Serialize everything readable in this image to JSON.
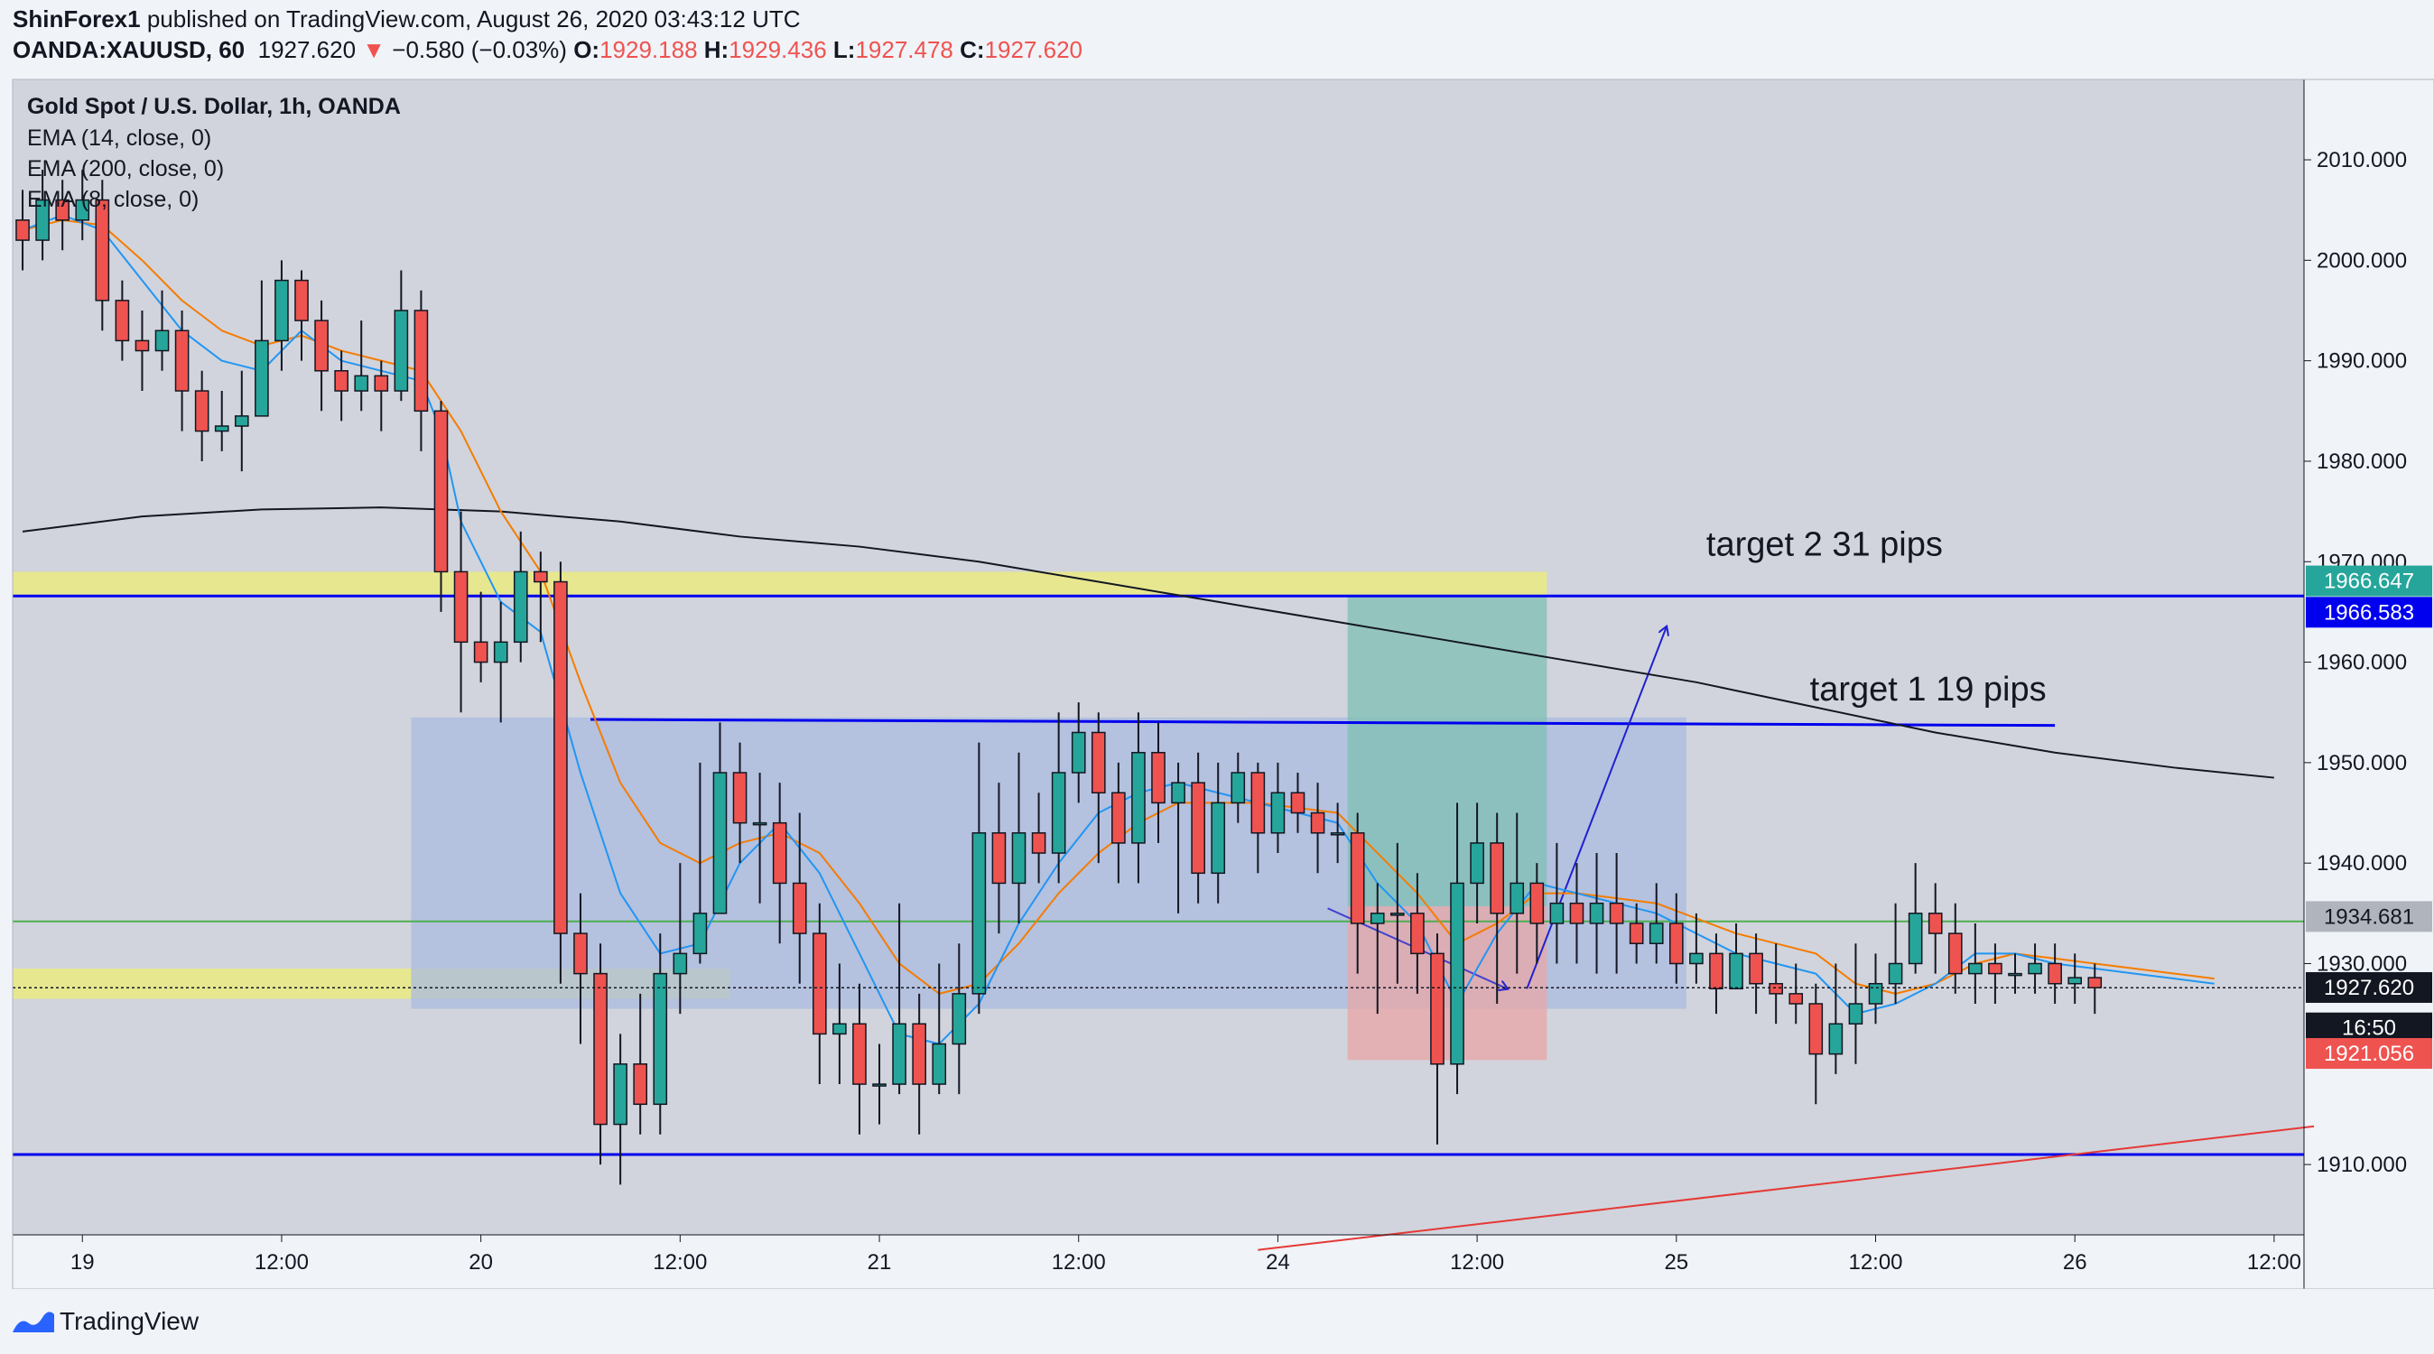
{
  "header": {
    "author": "ShinForex1",
    "published_text": "published on TradingView.com, August 26, 2020 03:43:12 UTC",
    "symbol": "OANDA:XAUUSD, 60",
    "last": "1927.620",
    "change": "−0.580 (−0.03%)",
    "o_label": "O:",
    "o_value": "1929.188",
    "h_label": "H:",
    "h_value": "1929.436",
    "l_label": "L:",
    "l_value": "1927.478",
    "c_label": "C:",
    "c_value": "1927.620"
  },
  "legend": {
    "title": "Gold Spot / U.S. Dollar, 1h, OANDA",
    "ema14": "EMA (14, close, 0)",
    "ema200": "EMA (200, close, 0)",
    "ema8": "EMA (8, close, 0)"
  },
  "footer": {
    "brand": "TradingView"
  },
  "colors": {
    "up": "#26a69a",
    "down": "#ef5350",
    "ema_fast": "#2196f3",
    "ema_mid": "#f57c00",
    "ema_slow": "#131722",
    "level_line": "#0000ee",
    "zone": "#eeee77",
    "box": "#a9bbe0",
    "tp_zone": "#7fbfb4",
    "sl_zone": "#e8a6a6",
    "trend": "#e53935",
    "horizontal_green": "#4caf50"
  },
  "chart_data": {
    "type": "candlestick",
    "symbol": "OANDA:XAUUSD",
    "interval": "1h",
    "y_range": [
      1903,
      2018
    ],
    "x_range": [
      0,
      115
    ],
    "y_ticks": [
      "2010.000",
      "2000.000",
      "1990.000",
      "1980.000",
      "1970.000",
      "1960.000",
      "1950.000",
      "1940.000",
      "1930.000",
      "1910.000"
    ],
    "x_ticks": [
      {
        "label": "19",
        "bar": 3
      },
      {
        "label": "12:00",
        "bar": 13
      },
      {
        "label": "20",
        "bar": 23
      },
      {
        "label": "12:00",
        "bar": 33
      },
      {
        "label": "21",
        "bar": 43
      },
      {
        "label": "12:00",
        "bar": 53
      },
      {
        "label": "24",
        "bar": 63
      },
      {
        "label": "12:00",
        "bar": 73
      },
      {
        "label": "25",
        "bar": 83
      },
      {
        "label": "12:00",
        "bar": 93
      },
      {
        "label": "26",
        "bar": 103
      },
      {
        "label": "12:00",
        "bar": 113
      }
    ],
    "price_labels": [
      {
        "text": "1966.647",
        "price": 1966.647,
        "bg": "#26a69a",
        "fg": "#ffffff"
      },
      {
        "text": "1966.583",
        "price": 1966.583,
        "bg": "#0000ee",
        "fg": "#ffffff"
      },
      {
        "text": "1934.681",
        "price": 1934.681,
        "bg": "#b0b4bc",
        "fg": "#131722"
      },
      {
        "text": "1927.620",
        "price": 1927.62,
        "bg": "#131722",
        "fg": "#ffffff"
      },
      {
        "text": "16:50",
        "price": 1923.6,
        "bg": "#131722",
        "fg": "#ffffff"
      },
      {
        "text": "1921.056",
        "price": 1921.056,
        "bg": "#ef5350",
        "fg": "#ffffff"
      }
    ],
    "annotations": [
      {
        "text": "target 2 31 pips",
        "bar": 84.5,
        "price": 1970.6
      },
      {
        "text": "target 1 19 pips",
        "bar": 89.7,
        "price": 1956.2
      }
    ],
    "candles": [
      [
        2004.0,
        2002.0,
        2007,
        1999
      ],
      [
        2002.0,
        2006.0,
        2009,
        2000
      ],
      [
        2006.0,
        2004.0,
        2008,
        2001
      ],
      [
        2004.0,
        2006.0,
        2009,
        2002
      ],
      [
        2006.0,
        1996.0,
        2008,
        1993
      ],
      [
        1996.0,
        1992.0,
        1998,
        1990
      ],
      [
        1992.0,
        1991.0,
        1995,
        1987
      ],
      [
        1991.0,
        1993.0,
        1997,
        1989
      ],
      [
        1993.0,
        1987.0,
        1995,
        1983
      ],
      [
        1987.0,
        1983.0,
        1989,
        1980
      ],
      [
        1983.0,
        1983.5,
        1987,
        1981
      ],
      [
        1983.5,
        1984.5,
        1989,
        1979
      ],
      [
        1984.5,
        1992.0,
        1998,
        1987
      ],
      [
        1992.0,
        1998.0,
        2000,
        1989
      ],
      [
        1998.0,
        1994.0,
        1999,
        1990
      ],
      [
        1994.0,
        1989.0,
        1996,
        1985
      ],
      [
        1989.0,
        1987.0,
        1991,
        1984
      ],
      [
        1987.0,
        1988.5,
        1994,
        1985
      ],
      [
        1988.5,
        1987.0,
        1990,
        1983
      ],
      [
        1987.0,
        1995.0,
        1999,
        1986
      ],
      [
        1995.0,
        1985.0,
        1997,
        1981
      ],
      [
        1985.0,
        1969.0,
        1986,
        1965
      ],
      [
        1969.0,
        1962.0,
        1975,
        1955
      ],
      [
        1962.0,
        1960.0,
        1967,
        1958
      ],
      [
        1960.0,
        1962.0,
        1966,
        1954
      ],
      [
        1962.0,
        1969.0,
        1973,
        1960
      ],
      [
        1969.0,
        1968.0,
        1971,
        1962
      ],
      [
        1968.0,
        1933.0,
        1970,
        1928
      ],
      [
        1933.0,
        1929.0,
        1937,
        1922
      ],
      [
        1929.0,
        1914.0,
        1932,
        1910
      ],
      [
        1914.0,
        1920.0,
        1923,
        1908
      ],
      [
        1920.0,
        1916.0,
        1927,
        1913
      ],
      [
        1916.0,
        1929.0,
        1933,
        1913
      ],
      [
        1929.0,
        1931.0,
        1940,
        1925
      ],
      [
        1931.0,
        1935.0,
        1950,
        1930
      ],
      [
        1935.0,
        1949.0,
        1954,
        1940
      ],
      [
        1949.0,
        1944.0,
        1952,
        1940
      ],
      [
        1944.0,
        1944.0,
        1949,
        1936
      ],
      [
        1944.0,
        1938.0,
        1948,
        1932
      ],
      [
        1938.0,
        1933.0,
        1945,
        1928
      ],
      [
        1933.0,
        1923.0,
        1936,
        1918
      ],
      [
        1923.0,
        1924.0,
        1930,
        1918
      ],
      [
        1924.0,
        1918.0,
        1928,
        1913
      ],
      [
        1918.0,
        1918.0,
        1922,
        1914
      ],
      [
        1918.0,
        1924.0,
        1936,
        1917
      ],
      [
        1924.0,
        1918.0,
        1927,
        1913
      ],
      [
        1918.0,
        1922.0,
        1930,
        1917
      ],
      [
        1922.0,
        1927.0,
        1932,
        1917
      ],
      [
        1927.0,
        1943.0,
        1952,
        1925
      ],
      [
        1943.0,
        1938.0,
        1948,
        1933
      ],
      [
        1938.0,
        1943.0,
        1951,
        1934
      ],
      [
        1943.0,
        1941.0,
        1947,
        1938
      ],
      [
        1941.0,
        1949.0,
        1955,
        1938
      ],
      [
        1949.0,
        1953.0,
        1956,
        1946
      ],
      [
        1953.0,
        1947.0,
        1955,
        1940
      ],
      [
        1947.0,
        1942.0,
        1950,
        1938
      ],
      [
        1942.0,
        1951.0,
        1955,
        1938
      ],
      [
        1951.0,
        1946.0,
        1954,
        1942
      ],
      [
        1946.0,
        1948.0,
        1950,
        1935
      ],
      [
        1948.0,
        1939.0,
        1951,
        1936
      ],
      [
        1939.0,
        1946.0,
        1950,
        1936
      ],
      [
        1946.0,
        1949.0,
        1951,
        1944
      ],
      [
        1949.0,
        1943.0,
        1950,
        1939
      ],
      [
        1943.0,
        1947.0,
        1950,
        1941
      ],
      [
        1947.0,
        1945.0,
        1949,
        1943
      ],
      [
        1945.0,
        1943.0,
        1948,
        1939
      ],
      [
        1943.0,
        1943.0,
        1946,
        1940
      ],
      [
        1943.0,
        1934.0,
        1945,
        1929
      ],
      [
        1934.0,
        1935.0,
        1938,
        1925
      ],
      [
        1935.0,
        1935.0,
        1942,
        1928
      ],
      [
        1935.0,
        1931.0,
        1939,
        1927
      ],
      [
        1931.0,
        1920.0,
        1933,
        1912
      ],
      [
        1920.0,
        1938.0,
        1946,
        1917
      ],
      [
        1938.0,
        1942.0,
        1946,
        1934
      ],
      [
        1942.0,
        1935.0,
        1945,
        1926
      ],
      [
        1935.0,
        1938.0,
        1945,
        1929
      ],
      [
        1938.0,
        1934.0,
        1940,
        1930
      ],
      [
        1934.0,
        1936.0,
        1942,
        1930
      ],
      [
        1936.0,
        1934.0,
        1940,
        1930
      ],
      [
        1934.0,
        1936.0,
        1941,
        1929
      ],
      [
        1936.0,
        1934.0,
        1941,
        1929
      ],
      [
        1934.0,
        1932.0,
        1936,
        1930
      ],
      [
        1932.0,
        1934.0,
        1938,
        1930
      ],
      [
        1934.0,
        1930.0,
        1937,
        1928
      ],
      [
        1930.0,
        1931.0,
        1935,
        1928
      ],
      [
        1931.0,
        1927.5,
        1933,
        1925
      ],
      [
        1927.5,
        1931.0,
        1934,
        1928
      ],
      [
        1931.0,
        1928.0,
        1933,
        1925
      ],
      [
        1928.0,
        1927.0,
        1932,
        1924
      ],
      [
        1927.0,
        1926.0,
        1930,
        1924
      ],
      [
        1926.0,
        1921.0,
        1928,
        1916
      ],
      [
        1921.0,
        1924.0,
        1930,
        1919
      ],
      [
        1924.0,
        1926.0,
        1932,
        1920
      ],
      [
        1926.0,
        1928.0,
        1931,
        1924
      ],
      [
        1928.0,
        1930.0,
        1936,
        1926
      ],
      [
        1930.0,
        1935.0,
        1940,
        1929
      ],
      [
        1935.0,
        1933.0,
        1938,
        1929
      ],
      [
        1933.0,
        1929.0,
        1936,
        1927
      ],
      [
        1929.0,
        1930.0,
        1934,
        1926
      ],
      [
        1930.0,
        1929.0,
        1932,
        1926
      ],
      [
        1929.0,
        1929.0,
        1931,
        1927
      ],
      [
        1929.0,
        1930.0,
        1932,
        1927
      ],
      [
        1930.0,
        1928.0,
        1932,
        1926
      ],
      [
        1928.0,
        1928.6,
        1931,
        1926
      ],
      [
        1928.6,
        1927.6,
        1930,
        1925
      ]
    ],
    "ema_fast": [
      [
        0,
        2003
      ],
      [
        2,
        2004.5
      ],
      [
        4,
        2003
      ],
      [
        6,
        1998
      ],
      [
        8,
        1993
      ],
      [
        10,
        1990
      ],
      [
        12,
        1989
      ],
      [
        14,
        1993
      ],
      [
        16,
        1990
      ],
      [
        18,
        1989
      ],
      [
        20,
        1988
      ],
      [
        21,
        1983
      ],
      [
        22,
        1974
      ],
      [
        24,
        1966
      ],
      [
        26,
        1963
      ],
      [
        28,
        1949
      ],
      [
        30,
        1937
      ],
      [
        32,
        1931
      ],
      [
        34,
        1932
      ],
      [
        36,
        1940
      ],
      [
        38,
        1944
      ],
      [
        40,
        1939
      ],
      [
        42,
        1931
      ],
      [
        44,
        1923
      ],
      [
        46,
        1922
      ],
      [
        48,
        1926
      ],
      [
        50,
        1934
      ],
      [
        52,
        1940
      ],
      [
        54,
        1945
      ],
      [
        56,
        1947
      ],
      [
        58,
        1948
      ],
      [
        60,
        1947
      ],
      [
        62,
        1946
      ],
      [
        64,
        1945
      ],
      [
        66,
        1944
      ],
      [
        68,
        1938
      ],
      [
        70,
        1934
      ],
      [
        72,
        1926
      ],
      [
        74,
        1933
      ],
      [
        76,
        1938
      ],
      [
        78,
        1937
      ],
      [
        80,
        1936
      ],
      [
        82,
        1935
      ],
      [
        84,
        1933
      ],
      [
        86,
        1931
      ],
      [
        88,
        1930
      ],
      [
        90,
        1929
      ],
      [
        92,
        1925
      ],
      [
        94,
        1926
      ],
      [
        96,
        1928
      ],
      [
        98,
        1931
      ],
      [
        100,
        1931
      ],
      [
        102,
        1930
      ],
      [
        104,
        1929.5
      ],
      [
        106,
        1929
      ],
      [
        108,
        1928.5
      ],
      [
        110,
        1928
      ]
    ],
    "ema_mid": [
      [
        0,
        2003
      ],
      [
        2,
        2004
      ],
      [
        4,
        2003.5
      ],
      [
        6,
        2000
      ],
      [
        8,
        1996
      ],
      [
        10,
        1993
      ],
      [
        12,
        1991.5
      ],
      [
        14,
        1992.5
      ],
      [
        16,
        1991
      ],
      [
        18,
        1990
      ],
      [
        20,
        1989
      ],
      [
        22,
        1983
      ],
      [
        24,
        1975
      ],
      [
        26,
        1969
      ],
      [
        28,
        1958
      ],
      [
        30,
        1948
      ],
      [
        32,
        1942
      ],
      [
        34,
        1940
      ],
      [
        36,
        1942
      ],
      [
        38,
        1943
      ],
      [
        40,
        1941
      ],
      [
        42,
        1936
      ],
      [
        44,
        1930
      ],
      [
        46,
        1927
      ],
      [
        48,
        1928
      ],
      [
        50,
        1932
      ],
      [
        52,
        1937
      ],
      [
        54,
        1941
      ],
      [
        56,
        1944
      ],
      [
        58,
        1946
      ],
      [
        60,
        1946
      ],
      [
        62,
        1946
      ],
      [
        64,
        1945.5
      ],
      [
        66,
        1945
      ],
      [
        68,
        1941
      ],
      [
        70,
        1937
      ],
      [
        72,
        1932
      ],
      [
        74,
        1934
      ],
      [
        76,
        1937
      ],
      [
        78,
        1937
      ],
      [
        80,
        1936.5
      ],
      [
        82,
        1936
      ],
      [
        84,
        1934.5
      ],
      [
        86,
        1933
      ],
      [
        88,
        1932
      ],
      [
        90,
        1931
      ],
      [
        92,
        1928
      ],
      [
        94,
        1927
      ],
      [
        96,
        1928
      ],
      [
        98,
        1930
      ],
      [
        100,
        1931
      ],
      [
        102,
        1930.5
      ],
      [
        104,
        1930
      ],
      [
        106,
        1929.5
      ],
      [
        108,
        1929
      ],
      [
        110,
        1928.5
      ]
    ],
    "ema_slow": [
      [
        0,
        1973
      ],
      [
        6,
        1974.5
      ],
      [
        12,
        1975.2
      ],
      [
        18,
        1975.4
      ],
      [
        24,
        1975
      ],
      [
        30,
        1974
      ],
      [
        36,
        1972.5
      ],
      [
        42,
        1971.5
      ],
      [
        48,
        1970
      ],
      [
        54,
        1968
      ],
      [
        60,
        1966
      ],
      [
        66,
        1964
      ],
      [
        72,
        1962
      ],
      [
        78,
        1960
      ],
      [
        84,
        1958
      ],
      [
        90,
        1955.5
      ],
      [
        96,
        1953
      ],
      [
        102,
        1951
      ],
      [
        108,
        1949.5
      ],
      [
        113,
        1948.5
      ]
    ],
    "hlines": [
      {
        "price": 1966.583,
        "color": "#0000ee",
        "width": 3
      },
      {
        "price": 1934.2,
        "color": "#4caf50",
        "width": 2
      },
      {
        "price": 1911.0,
        "color": "#0000ee",
        "width": 3
      }
    ],
    "zones": [
      {
        "x0": 0,
        "x1": 77,
        "y0": 1966.5,
        "y1": 1969.0,
        "color": "#eeee77"
      },
      {
        "x0": 0,
        "x1": 36,
        "y0": 1926.5,
        "y1": 1929.5,
        "color": "#eeee77"
      },
      {
        "x0": 20,
        "x1": 84,
        "y0": 1925.5,
        "y1": 1954.5,
        "color": "#a9bbe0"
      },
      {
        "x0": 67,
        "x1": 77,
        "y0": 1935.7,
        "y1": 1966.6,
        "color": "#7fbfb4"
      },
      {
        "x0": 67,
        "x1": 77,
        "y0": 1920.4,
        "y1": 1935.7,
        "color": "#e8a6a6"
      }
    ],
    "segments": [
      {
        "x0": 28.5,
        "y0": 1954.3,
        "x1": 102,
        "y1": 1953.7,
        "color": "#0000ee",
        "width": 3
      },
      {
        "x0": 62,
        "y0": 1901.5,
        "x1": 115,
        "y1": 1913.8,
        "color": "#e53935",
        "width": 2
      },
      {
        "x0": 65.5,
        "y0": 1935.5,
        "x1": 74.5,
        "y1": 1927.5,
        "color": "#4040d0",
        "width": 2,
        "arrow": true
      },
      {
        "x0": 75.5,
        "y0": 1927.5,
        "x1": 82.5,
        "y1": 1963.5,
        "color": "#2020d0",
        "width": 2,
        "arrow": true
      }
    ]
  }
}
